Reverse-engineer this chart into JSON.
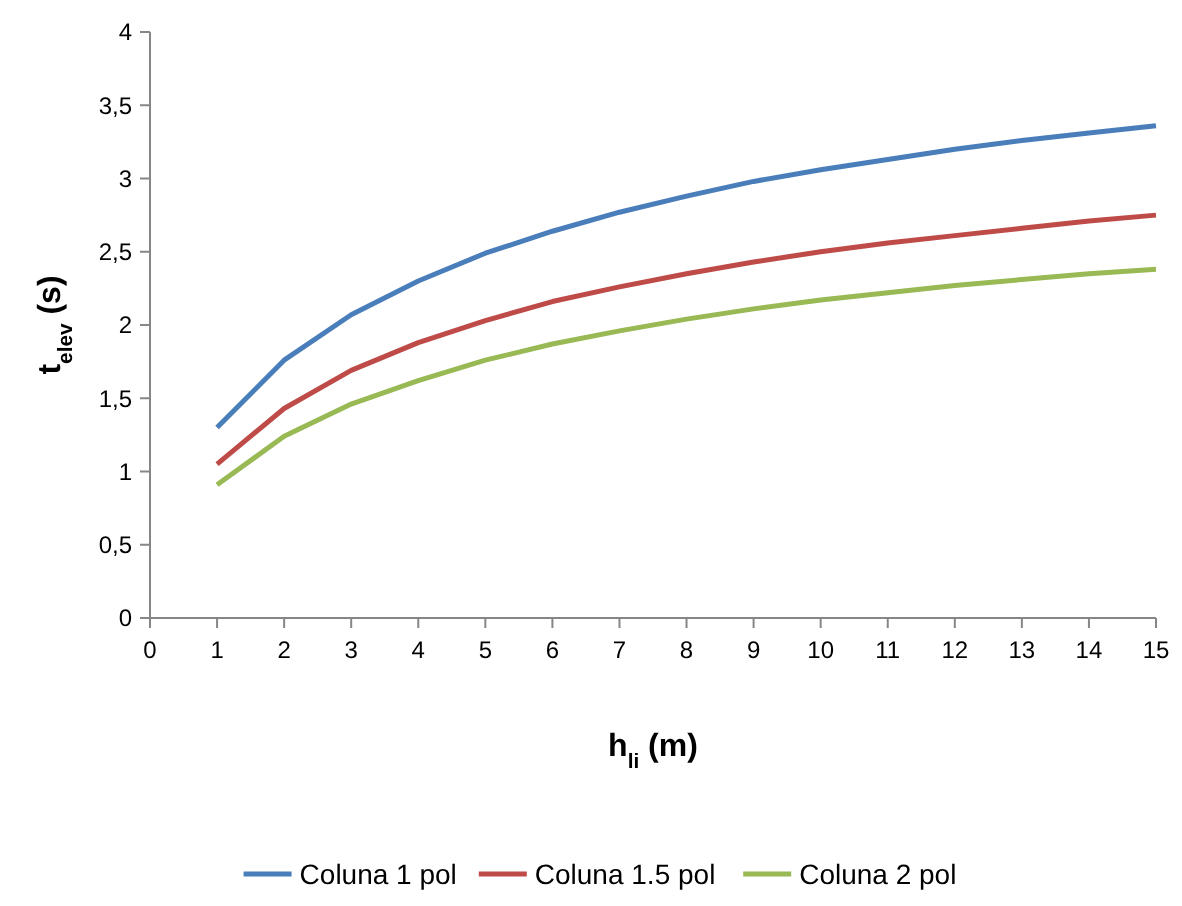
{
  "chart_data": {
    "type": "line",
    "xlabel": "h$_{li}$ (m)",
    "ylabel": "t$_{elev}$ (s)",
    "x": [
      1,
      2,
      3,
      4,
      5,
      6,
      7,
      8,
      9,
      10,
      11,
      12,
      13,
      14,
      15
    ],
    "series": [
      {
        "name": "Coluna 1 pol",
        "color": "#4a7ebb",
        "values": [
          1.3,
          1.76,
          2.07,
          2.3,
          2.49,
          2.64,
          2.77,
          2.88,
          2.98,
          3.06,
          3.13,
          3.2,
          3.26,
          3.31,
          3.36
        ]
      },
      {
        "name": "Coluna 1.5 pol",
        "color": "#be4b48",
        "values": [
          1.05,
          1.43,
          1.69,
          1.88,
          2.03,
          2.16,
          2.26,
          2.35,
          2.43,
          2.5,
          2.56,
          2.61,
          2.66,
          2.71,
          2.75
        ]
      },
      {
        "name": "Coluna 2 pol",
        "color": "#98b954",
        "values": [
          0.91,
          1.24,
          1.46,
          1.62,
          1.76,
          1.87,
          1.96,
          2.04,
          2.11,
          2.17,
          2.22,
          2.27,
          2.31,
          2.35,
          2.38
        ]
      }
    ],
    "xlim": [
      0,
      15
    ],
    "xticks": [
      0,
      1,
      2,
      3,
      4,
      5,
      6,
      7,
      8,
      9,
      10,
      11,
      12,
      13,
      14,
      15
    ],
    "ylim": [
      0,
      4
    ],
    "yticks": [
      0,
      {
        "value": 0.5,
        "label": "0,5"
      },
      1,
      {
        "value": 1.5,
        "label": "1,5"
      },
      2,
      {
        "value": 2.5,
        "label": "2,5"
      },
      3,
      {
        "value": 3.5,
        "label": "3,5"
      },
      4
    ],
    "grid": false,
    "legend": "bottom",
    "marker": "none",
    "line_style": "solid"
  }
}
